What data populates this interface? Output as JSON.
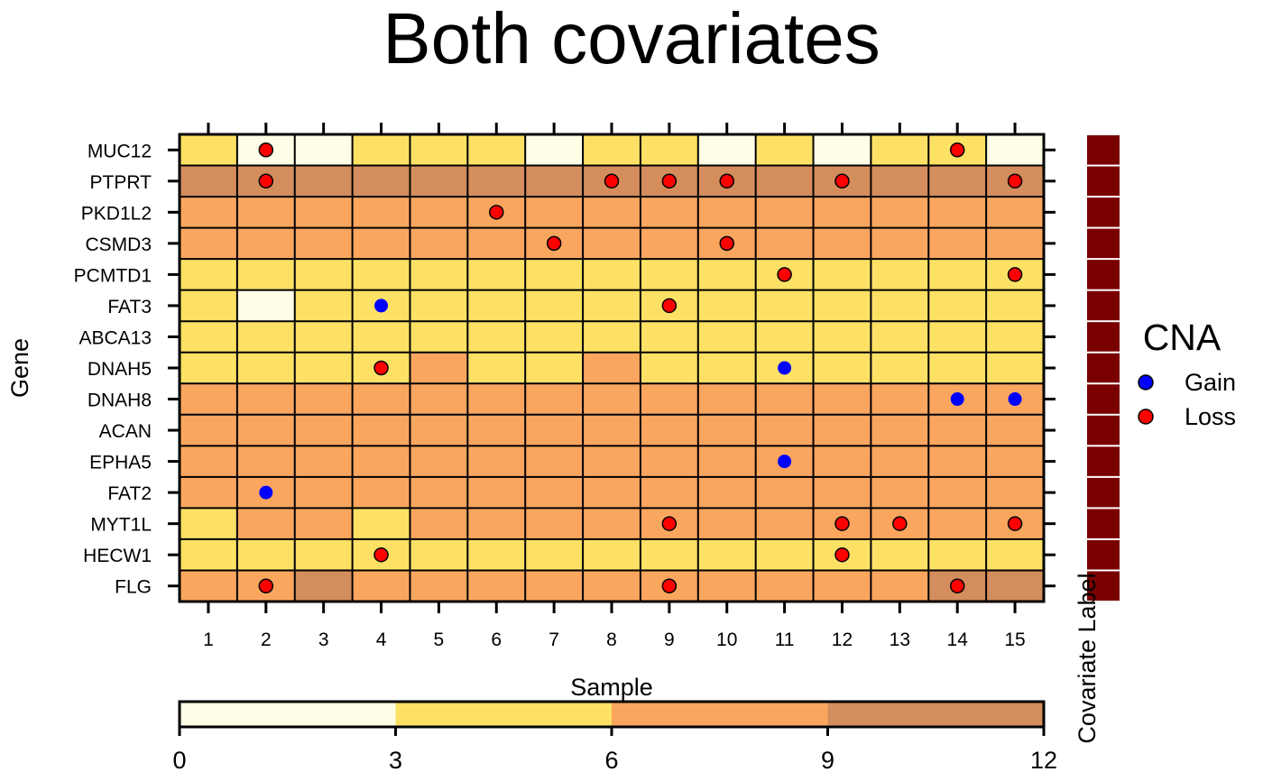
{
  "chart_data": {
    "type": "heatmap",
    "title": "Both covariates",
    "xlabel": "Sample",
    "ylabel": "Gene",
    "side_label": "Covariate Label",
    "samples": [
      "1",
      "2",
      "3",
      "4",
      "5",
      "6",
      "7",
      "8",
      "9",
      "10",
      "11",
      "12",
      "13",
      "14",
      "15"
    ],
    "genes": [
      "MUC12",
      "PTPRT",
      "PKD1L2",
      "CSMD3",
      "PCMTD1",
      "FAT3",
      "ABCA13",
      "DNAH5",
      "DNAH8",
      "ACAN",
      "EPHA5",
      "FAT2",
      "MYT1L",
      "HECW1",
      "FLG"
    ],
    "values": [
      [
        4,
        1,
        1,
        4,
        4,
        4,
        1,
        4,
        4,
        1,
        4,
        1,
        4,
        4,
        1
      ],
      [
        10,
        10,
        10,
        10,
        10,
        10,
        10,
        10,
        10,
        10,
        10,
        10,
        10,
        10,
        10
      ],
      [
        7,
        7,
        7,
        7,
        7,
        7,
        7,
        7,
        7,
        7,
        7,
        7,
        7,
        7,
        7
      ],
      [
        7,
        7,
        7,
        7,
        7,
        7,
        7,
        7,
        7,
        7,
        7,
        7,
        7,
        7,
        7
      ],
      [
        4,
        4,
        4,
        4,
        4,
        4,
        4,
        4,
        4,
        4,
        4,
        4,
        4,
        4,
        4
      ],
      [
        4,
        1,
        4,
        4,
        4,
        4,
        4,
        4,
        4,
        4,
        4,
        4,
        4,
        4,
        4
      ],
      [
        4,
        4,
        4,
        4,
        4,
        4,
        4,
        4,
        4,
        4,
        4,
        4,
        4,
        4,
        4
      ],
      [
        4,
        4,
        4,
        4,
        7,
        4,
        4,
        7,
        4,
        4,
        4,
        4,
        4,
        4,
        4
      ],
      [
        7,
        7,
        7,
        7,
        7,
        7,
        7,
        7,
        7,
        7,
        7,
        7,
        7,
        7,
        7
      ],
      [
        7,
        7,
        7,
        7,
        7,
        7,
        7,
        7,
        7,
        7,
        7,
        7,
        7,
        7,
        7
      ],
      [
        7,
        7,
        7,
        7,
        7,
        7,
        7,
        7,
        7,
        7,
        7,
        7,
        7,
        7,
        7
      ],
      [
        7,
        7,
        7,
        7,
        7,
        7,
        7,
        7,
        7,
        7,
        7,
        7,
        7,
        7,
        7
      ],
      [
        4,
        7,
        7,
        4,
        7,
        7,
        7,
        7,
        7,
        7,
        7,
        7,
        7,
        7,
        7
      ],
      [
        4,
        4,
        4,
        4,
        4,
        4,
        4,
        4,
        4,
        4,
        4,
        4,
        4,
        4,
        4
      ],
      [
        7,
        7,
        10,
        7,
        7,
        7,
        7,
        7,
        7,
        7,
        7,
        7,
        7,
        10,
        10
      ]
    ],
    "cna_points": [
      {
        "gene": "MUC12",
        "sample": 2,
        "type": "Loss"
      },
      {
        "gene": "MUC12",
        "sample": 14,
        "type": "Loss"
      },
      {
        "gene": "PTPRT",
        "sample": 2,
        "type": "Loss"
      },
      {
        "gene": "PTPRT",
        "sample": 8,
        "type": "Loss"
      },
      {
        "gene": "PTPRT",
        "sample": 9,
        "type": "Loss"
      },
      {
        "gene": "PTPRT",
        "sample": 10,
        "type": "Loss"
      },
      {
        "gene": "PTPRT",
        "sample": 12,
        "type": "Loss"
      },
      {
        "gene": "PTPRT",
        "sample": 15,
        "type": "Loss"
      },
      {
        "gene": "PKD1L2",
        "sample": 6,
        "type": "Loss"
      },
      {
        "gene": "CSMD3",
        "sample": 7,
        "type": "Loss"
      },
      {
        "gene": "CSMD3",
        "sample": 10,
        "type": "Loss"
      },
      {
        "gene": "PCMTD1",
        "sample": 11,
        "type": "Loss"
      },
      {
        "gene": "PCMTD1",
        "sample": 15,
        "type": "Loss"
      },
      {
        "gene": "FAT3",
        "sample": 4,
        "type": "Gain"
      },
      {
        "gene": "FAT3",
        "sample": 9,
        "type": "Loss"
      },
      {
        "gene": "DNAH5",
        "sample": 4,
        "type": "Loss"
      },
      {
        "gene": "DNAH5",
        "sample": 11,
        "type": "Gain"
      },
      {
        "gene": "DNAH8",
        "sample": 14,
        "type": "Gain"
      },
      {
        "gene": "DNAH8",
        "sample": 15,
        "type": "Gain"
      },
      {
        "gene": "EPHA5",
        "sample": 11,
        "type": "Gain"
      },
      {
        "gene": "FAT2",
        "sample": 2,
        "type": "Gain"
      },
      {
        "gene": "MYT1L",
        "sample": 9,
        "type": "Loss"
      },
      {
        "gene": "MYT1L",
        "sample": 12,
        "type": "Loss"
      },
      {
        "gene": "MYT1L",
        "sample": 13,
        "type": "Loss"
      },
      {
        "gene": "MYT1L",
        "sample": 15,
        "type": "Loss"
      },
      {
        "gene": "HECW1",
        "sample": 4,
        "type": "Loss"
      },
      {
        "gene": "HECW1",
        "sample": 12,
        "type": "Loss"
      },
      {
        "gene": "FLG",
        "sample": 2,
        "type": "Loss"
      },
      {
        "gene": "FLG",
        "sample": 9,
        "type": "Loss"
      },
      {
        "gene": "FLG",
        "sample": 14,
        "type": "Loss"
      }
    ],
    "colorkey": {
      "breaks": [
        0,
        3,
        6,
        9,
        12
      ],
      "labels": [
        "0",
        "3",
        "6",
        "9",
        "12"
      ],
      "colors": [
        "#FFFDE6",
        "#FDE165",
        "#FBA65F",
        "#D48D5C"
      ]
    },
    "legend": {
      "title": "CNA",
      "placement": "right",
      "entries": [
        {
          "label": "Gain",
          "color": "#0000FF"
        },
        {
          "label": "Loss",
          "color": "#FF0000"
        }
      ]
    },
    "side_bar_color": "#7A0000",
    "grid": true
  }
}
